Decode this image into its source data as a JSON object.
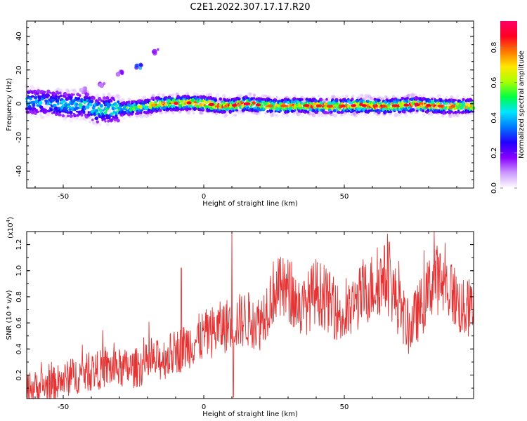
{
  "title": "C2E1.2022.307.17.17.R20",
  "chart_data": [
    {
      "type": "heatmap",
      "xlabel": "Height of straight line (km)",
      "ylabel": "Frequency (Hz)",
      "xlim": [
        -63,
        96
      ],
      "ylim": [
        -50,
        49
      ],
      "xticks": [
        -50,
        0,
        50
      ],
      "yticks": [
        -40,
        -20,
        0,
        20,
        40
      ],
      "colorbar": {
        "label": "Normalized spectral amplitude",
        "range": [
          0,
          0.95
        ],
        "ticks": [
          0.0,
          0.2,
          0.4,
          0.6,
          0.8
        ],
        "colormap": [
          "#ffffff",
          "#cc99ff",
          "#8800ff",
          "#2200ff",
          "#0077ff",
          "#00e5ff",
          "#00ff44",
          "#aaff00",
          "#ffe600",
          "#ff7700",
          "#ff0022",
          "#ff0066"
        ]
      },
      "ridge": [
        {
          "x": -62,
          "freq": 1.5,
          "amp": 0.35
        },
        {
          "x": -55,
          "freq": 0.5,
          "amp": 0.3
        },
        {
          "x": -48,
          "freq": -1.0,
          "amp": 0.4
        },
        {
          "x": -42,
          "freq": -0.5,
          "amp": 0.38
        },
        {
          "x": -38,
          "freq": -4.0,
          "amp": 0.45
        },
        {
          "x": -30,
          "freq": -3.0,
          "amp": 0.45
        },
        {
          "x": -22,
          "freq": -2.0,
          "amp": 0.55
        },
        {
          "x": -15,
          "freq": 0.0,
          "amp": 0.75
        },
        {
          "x": -5,
          "freq": 0.5,
          "amp": 0.8
        },
        {
          "x": 0,
          "freq": 0.0,
          "amp": 0.85
        },
        {
          "x": 8,
          "freq": -1.5,
          "amp": 0.8
        },
        {
          "x": 15,
          "freq": 0.0,
          "amp": 0.85
        },
        {
          "x": 25,
          "freq": -1.5,
          "amp": 0.7
        },
        {
          "x": 35,
          "freq": -1.0,
          "amp": 0.8
        },
        {
          "x": 45,
          "freq": -1.5,
          "amp": 0.75
        },
        {
          "x": 55,
          "freq": -1.0,
          "amp": 0.8
        },
        {
          "x": 65,
          "freq": -1.5,
          "amp": 0.75
        },
        {
          "x": 75,
          "freq": -0.5,
          "amp": 0.85
        },
        {
          "x": 85,
          "freq": -1.5,
          "amp": 0.75
        },
        {
          "x": 95,
          "freq": -1.5,
          "amp": 0.7
        }
      ],
      "secondary": [
        {
          "x": -43,
          "freq": 8.0,
          "amp": 0.15
        },
        {
          "x": -36,
          "freq": 12.0,
          "amp": 0.15
        },
        {
          "x": -30,
          "freq": 18.0,
          "amp": 0.2
        },
        {
          "x": -23,
          "freq": 22.0,
          "amp": 0.35
        },
        {
          "x": -17,
          "freq": 31.0,
          "amp": 0.2
        }
      ]
    },
    {
      "type": "line",
      "xlabel": "Height of straight line (km)",
      "ylabel": "SNR (10 * v/v)",
      "ylabel_exponent": "(x10",
      "exponent_power": "4",
      "exponent_close": ")",
      "xlim": [
        -63,
        96
      ],
      "ylim": [
        0.02,
        1.3
      ],
      "xticks": [
        -50,
        0,
        50
      ],
      "yticks": [
        0.2,
        0.4,
        0.6,
        0.8,
        1.0,
        1.2
      ],
      "ytick_labels": [
        "0.2",
        "0.4",
        "0.6",
        "0.8",
        "1.0",
        "1.2"
      ],
      "color": "#e53333",
      "trend": [
        {
          "x": -63,
          "y": 0.1
        },
        {
          "x": -55,
          "y": 0.12
        },
        {
          "x": -45,
          "y": 0.2
        },
        {
          "x": -35,
          "y": 0.25
        },
        {
          "x": -25,
          "y": 0.25
        },
        {
          "x": -15,
          "y": 0.32
        },
        {
          "x": -8,
          "y": 0.4
        },
        {
          "x": 0,
          "y": 0.5
        },
        {
          "x": 8,
          "y": 0.58
        },
        {
          "x": 15,
          "y": 0.63
        },
        {
          "x": 20,
          "y": 0.6
        },
        {
          "x": 25,
          "y": 0.85
        },
        {
          "x": 30,
          "y": 0.85
        },
        {
          "x": 35,
          "y": 0.7
        },
        {
          "x": 40,
          "y": 0.85
        },
        {
          "x": 45,
          "y": 0.75
        },
        {
          "x": 50,
          "y": 0.62
        },
        {
          "x": 55,
          "y": 0.78
        },
        {
          "x": 60,
          "y": 0.88
        },
        {
          "x": 65,
          "y": 0.95
        },
        {
          "x": 70,
          "y": 0.7
        },
        {
          "x": 73,
          "y": 0.55
        },
        {
          "x": 78,
          "y": 0.75
        },
        {
          "x": 82,
          "y": 0.95
        },
        {
          "x": 88,
          "y": 0.85
        },
        {
          "x": 92,
          "y": 0.7
        },
        {
          "x": 96,
          "y": 0.72
        }
      ],
      "peaks": [
        {
          "x": -8,
          "y": 1.02
        },
        {
          "x": 10,
          "y": 1.3
        },
        {
          "x": 10.5,
          "y": 0.03
        },
        {
          "x": 82,
          "y": 1.3
        },
        {
          "x": 66,
          "y": 1.22
        }
      ]
    }
  ]
}
